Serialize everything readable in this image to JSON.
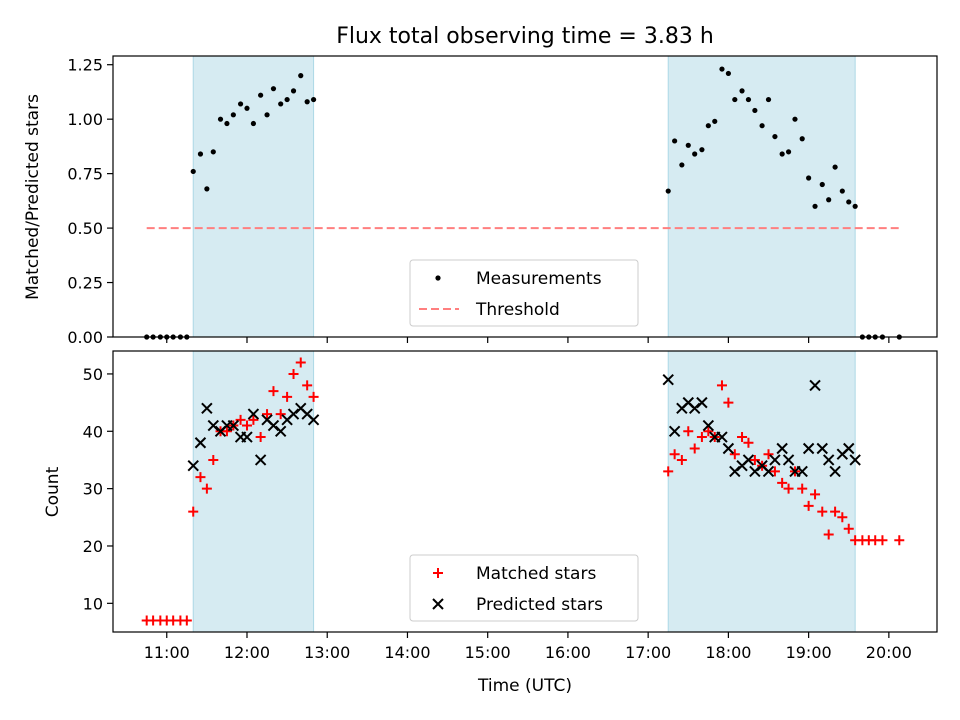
{
  "title": "Flux total observing time = 3.83 h",
  "xlabel": "Time (UTC)",
  "x_ticks": [
    "11:00",
    "12:00",
    "13:00",
    "14:00",
    "15:00",
    "16:00",
    "17:00",
    "18:00",
    "19:00",
    "20:00"
  ],
  "x_range_hours": [
    10.33,
    20.6
  ],
  "colors": {
    "shade": "#add8e6",
    "measurement": "#000000",
    "threshold": "#ff7f7f",
    "matched": "#ff0000",
    "predicted": "#000000"
  },
  "chart_data": [
    {
      "type": "scatter",
      "ylabel": "Matched/Predicted stars",
      "ylim": [
        0,
        1.29
      ],
      "y_ticks": [
        "0.00",
        "0.25",
        "0.50",
        "0.75",
        "1.00",
        "1.25"
      ],
      "grid": false,
      "legend": {
        "placement": "lower-center",
        "entries": [
          "Measurements",
          "Threshold"
        ]
      },
      "shaded_intervals_hours": [
        [
          11.33,
          12.83
        ],
        [
          17.25,
          19.58
        ]
      ],
      "threshold": {
        "name": "Threshold",
        "y": 0.5,
        "x_start": 10.75,
        "x_end": 20.13
      },
      "series": [
        {
          "name": "Measurements",
          "points": [
            [
              10.75,
              0
            ],
            [
              10.83,
              0
            ],
            [
              10.92,
              0
            ],
            [
              11.0,
              0
            ],
            [
              11.08,
              0
            ],
            [
              11.17,
              0
            ],
            [
              11.25,
              0
            ],
            [
              11.33,
              0.76
            ],
            [
              11.42,
              0.84
            ],
            [
              11.5,
              0.68
            ],
            [
              11.58,
              0.85
            ],
            [
              11.67,
              1.0
            ],
            [
              11.75,
              0.98
            ],
            [
              11.83,
              1.02
            ],
            [
              11.92,
              1.07
            ],
            [
              12.0,
              1.05
            ],
            [
              12.08,
              0.98
            ],
            [
              12.17,
              1.11
            ],
            [
              12.25,
              1.02
            ],
            [
              12.33,
              1.14
            ],
            [
              12.42,
              1.07
            ],
            [
              12.5,
              1.09
            ],
            [
              12.58,
              1.13
            ],
            [
              12.67,
              1.2
            ],
            [
              12.75,
              1.08
            ],
            [
              12.83,
              1.09
            ],
            [
              17.25,
              0.67
            ],
            [
              17.33,
              0.9
            ],
            [
              17.42,
              0.79
            ],
            [
              17.5,
              0.88
            ],
            [
              17.58,
              0.84
            ],
            [
              17.67,
              0.86
            ],
            [
              17.75,
              0.97
            ],
            [
              17.83,
              0.99
            ],
            [
              17.92,
              1.23
            ],
            [
              18.0,
              1.21
            ],
            [
              18.08,
              1.09
            ],
            [
              18.17,
              1.13
            ],
            [
              18.25,
              1.09
            ],
            [
              18.33,
              1.04
            ],
            [
              18.42,
              0.97
            ],
            [
              18.5,
              1.09
            ],
            [
              18.58,
              0.92
            ],
            [
              18.67,
              0.84
            ],
            [
              18.75,
              0.85
            ],
            [
              18.83,
              1.0
            ],
            [
              18.92,
              0.91
            ],
            [
              19.0,
              0.73
            ],
            [
              19.08,
              0.6
            ],
            [
              19.17,
              0.7
            ],
            [
              19.25,
              0.63
            ],
            [
              19.33,
              0.78
            ],
            [
              19.42,
              0.67
            ],
            [
              19.5,
              0.62
            ],
            [
              19.58,
              0.6
            ],
            [
              19.67,
              0
            ],
            [
              19.75,
              0
            ],
            [
              19.83,
              0
            ],
            [
              19.92,
              0
            ],
            [
              20.13,
              0
            ]
          ]
        }
      ]
    },
    {
      "type": "scatter",
      "ylabel": "Count",
      "ylim": [
        5,
        54
      ],
      "y_ticks": [
        "10",
        "20",
        "30",
        "40",
        "50"
      ],
      "grid": false,
      "legend": {
        "placement": "lower-center",
        "entries": [
          "Matched stars",
          "Predicted stars"
        ]
      },
      "shaded_intervals_hours": [
        [
          11.33,
          12.83
        ],
        [
          17.25,
          19.58
        ]
      ],
      "series": [
        {
          "name": "Matched stars",
          "marker": "plus",
          "points": [
            [
              10.75,
              7
            ],
            [
              10.83,
              7
            ],
            [
              10.92,
              7
            ],
            [
              11.0,
              7
            ],
            [
              11.08,
              7
            ],
            [
              11.17,
              7
            ],
            [
              11.25,
              7
            ],
            [
              11.33,
              26
            ],
            [
              11.42,
              32
            ],
            [
              11.5,
              30
            ],
            [
              11.58,
              35
            ],
            [
              11.67,
              40
            ],
            [
              11.75,
              40
            ],
            [
              11.83,
              41
            ],
            [
              11.92,
              42
            ],
            [
              12.0,
              41
            ],
            [
              12.08,
              42
            ],
            [
              12.17,
              39
            ],
            [
              12.25,
              43
            ],
            [
              12.33,
              47
            ],
            [
              12.42,
              43
            ],
            [
              12.5,
              46
            ],
            [
              12.58,
              50
            ],
            [
              12.67,
              52
            ],
            [
              12.75,
              48
            ],
            [
              12.83,
              46
            ],
            [
              17.25,
              33
            ],
            [
              17.33,
              36
            ],
            [
              17.42,
              35
            ],
            [
              17.5,
              40
            ],
            [
              17.58,
              37
            ],
            [
              17.67,
              39
            ],
            [
              17.75,
              40
            ],
            [
              17.83,
              39
            ],
            [
              17.92,
              48
            ],
            [
              18.0,
              45
            ],
            [
              18.08,
              36
            ],
            [
              18.17,
              39
            ],
            [
              18.25,
              38
            ],
            [
              18.33,
              35
            ],
            [
              18.42,
              34
            ],
            [
              18.5,
              36
            ],
            [
              18.58,
              33
            ],
            [
              18.67,
              31
            ],
            [
              18.75,
              30
            ],
            [
              18.83,
              33
            ],
            [
              18.92,
              30
            ],
            [
              19.0,
              27
            ],
            [
              19.08,
              29
            ],
            [
              19.17,
              26
            ],
            [
              19.25,
              22
            ],
            [
              19.33,
              26
            ],
            [
              19.42,
              25
            ],
            [
              19.5,
              23
            ],
            [
              19.58,
              21
            ],
            [
              19.67,
              21
            ],
            [
              19.75,
              21
            ],
            [
              19.83,
              21
            ],
            [
              19.92,
              21
            ],
            [
              20.13,
              21
            ]
          ]
        },
        {
          "name": "Predicted stars",
          "marker": "x",
          "points": [
            [
              11.33,
              34
            ],
            [
              11.42,
              38
            ],
            [
              11.5,
              44
            ],
            [
              11.58,
              41
            ],
            [
              11.67,
              40
            ],
            [
              11.75,
              41
            ],
            [
              11.83,
              41
            ],
            [
              11.92,
              39
            ],
            [
              12.0,
              39
            ],
            [
              12.08,
              43
            ],
            [
              12.17,
              35
            ],
            [
              12.25,
              42
            ],
            [
              12.33,
              41
            ],
            [
              12.42,
              40
            ],
            [
              12.5,
              42
            ],
            [
              12.58,
              43
            ],
            [
              12.67,
              44
            ],
            [
              12.75,
              43
            ],
            [
              12.83,
              42
            ],
            [
              17.25,
              49
            ],
            [
              17.33,
              40
            ],
            [
              17.42,
              44
            ],
            [
              17.5,
              45
            ],
            [
              17.58,
              44
            ],
            [
              17.67,
              45
            ],
            [
              17.75,
              41
            ],
            [
              17.83,
              39
            ],
            [
              17.92,
              39
            ],
            [
              18.0,
              37
            ],
            [
              18.08,
              33
            ],
            [
              18.17,
              34
            ],
            [
              18.25,
              35
            ],
            [
              18.33,
              33
            ],
            [
              18.42,
              34
            ],
            [
              18.5,
              33
            ],
            [
              18.58,
              35
            ],
            [
              18.67,
              37
            ],
            [
              18.75,
              35
            ],
            [
              18.83,
              33
            ],
            [
              18.92,
              33
            ],
            [
              19.0,
              37
            ],
            [
              19.08,
              48
            ],
            [
              19.17,
              37
            ],
            [
              19.25,
              35
            ],
            [
              19.33,
              33
            ],
            [
              19.42,
              36
            ],
            [
              19.5,
              37
            ],
            [
              19.58,
              35
            ]
          ]
        }
      ]
    }
  ]
}
